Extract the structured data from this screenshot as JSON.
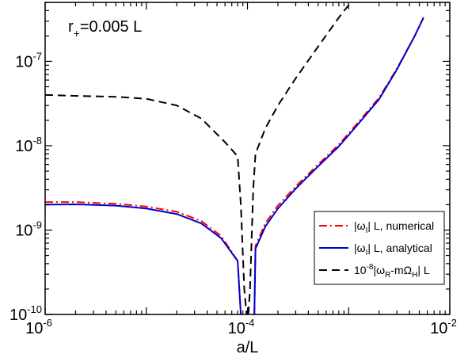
{
  "chart_data": {
    "type": "line",
    "xlabel": "a/L",
    "x_scale": "log",
    "y_scale": "log",
    "xlim": [
      1e-06,
      0.01
    ],
    "ylim": [
      1e-10,
      5e-07
    ],
    "grid": false,
    "legend_position": "bottom-right",
    "x_ticks": [
      {
        "value": 1e-06,
        "base": "10",
        "exp": "-6"
      },
      {
        "value": 0.0001,
        "base": "10",
        "exp": "-4"
      },
      {
        "value": 0.01,
        "base": "10",
        "exp": "-2"
      }
    ],
    "y_ticks": [
      {
        "value": 1e-10,
        "base": "10",
        "exp": "-10"
      },
      {
        "value": 1e-09,
        "base": "10",
        "exp": "-9"
      },
      {
        "value": 1e-08,
        "base": "10",
        "exp": "-8"
      },
      {
        "value": 1e-07,
        "base": "10",
        "exp": "-7"
      }
    ],
    "annotation": {
      "main": "r",
      "sub": "+",
      "rest": "=0.005 L"
    },
    "series": [
      {
        "name": "|ωI| L, numerical",
        "legend": {
          "pre": "|ω",
          "sub": "I",
          "post": "| L, numerical"
        },
        "color": "#ff0000",
        "dash": "10 4 2 4",
        "points": [
          [
            1e-06,
            2.15e-09
          ],
          [
            2e-06,
            2.15e-09
          ],
          [
            5e-06,
            2.05e-09
          ],
          [
            1e-05,
            1.9e-09
          ],
          [
            2e-05,
            1.65e-09
          ],
          [
            3.5e-05,
            1.28e-09
          ],
          [
            5.5e-05,
            8.5e-10
          ],
          [
            8e-05,
            4.3e-10
          ],
          [
            8.6e-05,
            1e-10
          ],
          null,
          [
            0.000117,
            1e-10
          ],
          [
            0.00012,
            6.5e-10
          ],
          [
            0.00015,
            1.2e-09
          ],
          [
            0.0002,
            1.95e-09
          ],
          [
            0.0003,
            3.3e-09
          ],
          [
            0.0005,
            6e-09
          ],
          [
            0.0008,
            1.03e-08
          ],
          [
            0.0012,
            1.8e-08
          ],
          [
            0.002,
            3.7e-08
          ],
          [
            0.003,
            8.2e-08
          ],
          [
            0.0045,
            2e-07
          ],
          [
            0.0055,
            3.3e-07
          ]
        ]
      },
      {
        "name": "|ωI| L, analytical",
        "legend": {
          "pre": "|ω",
          "sub": "I",
          "post": "| L, analytical"
        },
        "color": "#0000cc",
        "dash": "",
        "points": [
          [
            1e-06,
            2e-09
          ],
          [
            2e-06,
            2.02e-09
          ],
          [
            5e-06,
            1.95e-09
          ],
          [
            1e-05,
            1.8e-09
          ],
          [
            2e-05,
            1.55e-09
          ],
          [
            3.5e-05,
            1.2e-09
          ],
          [
            5.5e-05,
            8e-10
          ],
          [
            8e-05,
            4.3e-10
          ],
          [
            8.6e-05,
            1e-10
          ],
          null,
          [
            0.000117,
            1e-10
          ],
          [
            0.00012,
            6e-10
          ],
          [
            0.00015,
            1.1e-09
          ],
          [
            0.0002,
            1.8e-09
          ],
          [
            0.0003,
            3.1e-09
          ],
          [
            0.0005,
            5.7e-09
          ],
          [
            0.0008,
            9.8e-09
          ],
          [
            0.0012,
            1.72e-08
          ],
          [
            0.002,
            3.55e-08
          ],
          [
            0.003,
            8e-08
          ],
          [
            0.0045,
            2e-07
          ],
          [
            0.0055,
            3.3e-07
          ]
        ]
      },
      {
        "name": "10^-8|ωR-mΩH| L",
        "legend": {
          "pre": "10",
          "sup": "-8",
          "mid": "|ω",
          "sub": "R",
          "mid2": "-mΩ",
          "sub2": "H",
          "post": "| L"
        },
        "color": "#000000",
        "dash": "10 6",
        "points": [
          [
            1e-06,
            4e-08
          ],
          [
            2e-06,
            3.9e-08
          ],
          [
            5e-06,
            3.8e-08
          ],
          [
            1e-05,
            3.6e-08
          ],
          [
            2e-05,
            3e-08
          ],
          [
            3.5e-05,
            2.1e-08
          ],
          [
            6e-05,
            1.1e-08
          ],
          [
            8e-05,
            7.5e-09
          ],
          [
            8.6e-05,
            2e-09
          ],
          [
            9.3e-05,
            2e-10
          ],
          [
            9.8e-05,
            1e-10
          ],
          null,
          [
            0.000102,
            1e-10
          ],
          [
            0.000106,
            2e-10
          ],
          [
            0.000114,
            3e-09
          ],
          [
            0.00012,
            8e-09
          ],
          [
            0.00015,
            1.6e-08
          ],
          [
            0.0002,
            3e-08
          ],
          [
            0.0003,
            6.3e-08
          ],
          [
            0.0005,
            1.5e-07
          ],
          [
            0.0008,
            3.3e-07
          ],
          [
            0.00105,
            5e-07
          ]
        ]
      }
    ]
  }
}
